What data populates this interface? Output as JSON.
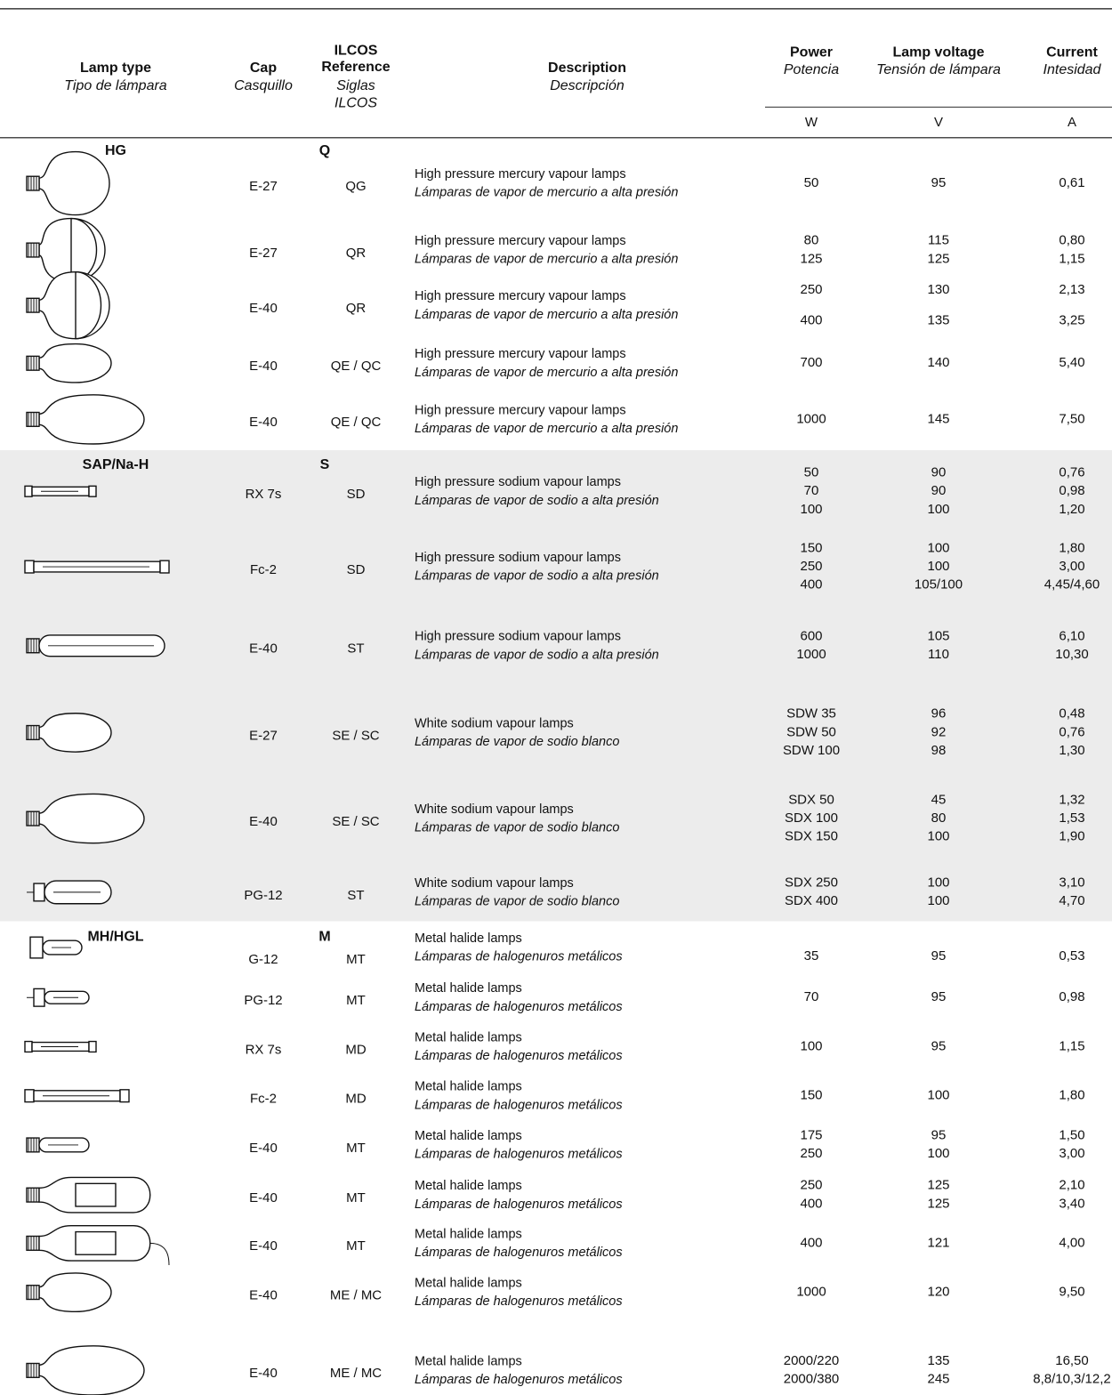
{
  "header": {
    "lamp_type": {
      "en": "Lamp type",
      "es": "Tipo de lámpara"
    },
    "cap": {
      "en": "Cap",
      "es": "Casquillo"
    },
    "ilcos": {
      "en": [
        "ILCOS",
        "Reference"
      ],
      "es": [
        "Siglas",
        "ILCOS"
      ]
    },
    "description": {
      "en": "Description",
      "es": "Descripción"
    },
    "power": {
      "en": "Power",
      "es": "Potencia",
      "unit": "W"
    },
    "voltage": {
      "en": "Lamp voltage",
      "es": "Tensión de lámpara",
      "unit": "V"
    },
    "current": {
      "en": "Current",
      "es": "Intesidad",
      "unit": "A"
    }
  },
  "groups": [
    {
      "label": "HG",
      "code": "Q",
      "rows": [
        {
          "cap": "E-27",
          "ilcos": "QG",
          "desc_en": "High pressure mercury vapour lamps",
          "desc_es": "Lámparas de vapor de mercurio a alta presión",
          "power": [
            "50"
          ],
          "voltage": [
            "95"
          ],
          "current": [
            "0,61"
          ]
        },
        {
          "cap": "E-27",
          "ilcos": "QR",
          "desc_en": "High pressure mercury vapour lamps",
          "desc_es": "Lámparas de vapor de mercurio a alta presión",
          "power": [
            "80",
            "125"
          ],
          "voltage": [
            "115",
            "125"
          ],
          "current": [
            "0,80",
            "1,15"
          ]
        },
        {
          "cap": "E-40",
          "ilcos": "QR",
          "desc_en": "High pressure mercury vapour lamps",
          "desc_es": "Lámparas de vapor de mercurio a alta presión",
          "power": [
            "250",
            "400"
          ],
          "voltage": [
            "130",
            "135"
          ],
          "current": [
            "2,13",
            "3,25"
          ]
        },
        {
          "cap": "E-40",
          "ilcos": "QE / QC",
          "desc_en": "High pressure mercury vapour lamps",
          "desc_es": "Lámparas de vapor de mercurio a alta presión",
          "power": [
            "700"
          ],
          "voltage": [
            "140"
          ],
          "current": [
            "5,40"
          ]
        },
        {
          "cap": "E-40",
          "ilcos": "QE / QC",
          "desc_en": "High pressure mercury vapour lamps",
          "desc_es": "Lámparas de vapor de mercurio a alta presión",
          "power": [
            "1000"
          ],
          "voltage": [
            "145"
          ],
          "current": [
            "7,50"
          ]
        }
      ]
    },
    {
      "label": "SAP/Na-H",
      "code": "S",
      "rows": [
        {
          "cap": "RX 7s",
          "ilcos": "SD",
          "desc_en": "High pressure sodium vapour lamps",
          "desc_es": "Lámparas de vapor de sodio a alta presión",
          "power": [
            "50",
            "70",
            "100"
          ],
          "voltage": [
            "90",
            "90",
            "100"
          ],
          "current": [
            "0,76",
            "0,98",
            "1,20"
          ]
        },
        {
          "cap": "Fc-2",
          "ilcos": "SD",
          "desc_en": "High pressure sodium vapour lamps",
          "desc_es": "Lámparas de vapor de sodio a alta presión",
          "power": [
            "150",
            "250",
            "400"
          ],
          "voltage": [
            "100",
            "100",
            "105/100"
          ],
          "current": [
            "1,80",
            "3,00",
            "4,45/4,60"
          ]
        },
        {
          "cap": "E-40",
          "ilcos": "ST",
          "desc_en": "High pressure sodium vapour lamps",
          "desc_es": "Lámparas de vapor de sodio a alta presión",
          "power": [
            "600",
            "1000"
          ],
          "voltage": [
            "105",
            "110"
          ],
          "current": [
            "6,10",
            "10,30"
          ]
        },
        {
          "cap": "E-27",
          "ilcos": "SE / SC",
          "desc_en": "White sodium vapour lamps",
          "desc_es": "Lámparas de vapor de sodio blanco",
          "power": [
            "SDW 35",
            "SDW 50",
            "SDW 100"
          ],
          "voltage": [
            "96",
            "92",
            "98"
          ],
          "current": [
            "0,48",
            "0,76",
            "1,30"
          ]
        },
        {
          "cap": "E-40",
          "ilcos": "SE / SC",
          "desc_en": "White sodium vapour lamps",
          "desc_es": "Lámparas de vapor de sodio blanco",
          "power": [
            "SDX 50",
            "SDX 100",
            "SDX 150"
          ],
          "voltage": [
            "45",
            "80",
            "100"
          ],
          "current": [
            "1,32",
            "1,53",
            "1,90"
          ]
        },
        {
          "cap": "PG-12",
          "ilcos": "ST",
          "desc_en": "White sodium vapour lamps",
          "desc_es": "Lámparas de vapor de sodio blanco",
          "power": [
            "SDX 250",
            "SDX 400"
          ],
          "voltage": [
            "100",
            "100"
          ],
          "current": [
            "3,10",
            "4,70"
          ]
        }
      ]
    },
    {
      "label": "MH/HGL",
      "code": "M",
      "rows": [
        {
          "cap": "G-12",
          "ilcos": "MT",
          "desc_en": "Metal halide lamps",
          "desc_es": "Lámparas de halogenuros metálicos",
          "power": [
            "35"
          ],
          "voltage": [
            "95"
          ],
          "current": [
            "0,53"
          ]
        },
        {
          "cap": "PG-12",
          "ilcos": "MT",
          "desc_en": "Metal halide lamps",
          "desc_es": "Lámparas de halogenuros metálicos",
          "power": [
            "70"
          ],
          "voltage": [
            "95"
          ],
          "current": [
            "0,98"
          ]
        },
        {
          "cap": "RX 7s",
          "ilcos": "MD",
          "desc_en": "Metal halide lamps",
          "desc_es": "Lámparas de halogenuros metálicos",
          "power": [
            "100"
          ],
          "voltage": [
            "95"
          ],
          "current": [
            "1,15"
          ]
        },
        {
          "cap": "Fc-2",
          "ilcos": "MD",
          "desc_en": "Metal halide lamps",
          "desc_es": "Lámparas de halogenuros metálicos",
          "power": [
            "150"
          ],
          "voltage": [
            "100"
          ],
          "current": [
            "1,80"
          ]
        },
        {
          "cap": "E-40",
          "ilcos": "MT",
          "desc_en": "Metal halide lamps",
          "desc_es": "Lámparas de halogenuros metálicos",
          "power": [
            "175",
            "250"
          ],
          "voltage": [
            "95",
            "100"
          ],
          "current": [
            "1,50",
            "3,00"
          ]
        },
        {
          "cap": "E-40",
          "ilcos": "MT",
          "desc_en": "Metal halide lamps",
          "desc_es": "Lámparas de halogenuros metálicos",
          "power": [
            "250",
            "400"
          ],
          "voltage": [
            "125",
            "125"
          ],
          "current": [
            "2,10",
            "3,40"
          ]
        },
        {
          "cap": "E-40",
          "ilcos": "MT",
          "desc_en": "Metal halide lamps",
          "desc_es": "Lámparas de halogenuros metálicos",
          "power": [
            "400"
          ],
          "voltage": [
            "121"
          ],
          "current": [
            "4,00"
          ]
        },
        {
          "cap": "E-40",
          "ilcos": "ME / MC",
          "desc_en": "Metal halide lamps",
          "desc_es": "Lámparas de halogenuros metálicos",
          "power": [
            "1000"
          ],
          "voltage": [
            "120"
          ],
          "current": [
            "9,50"
          ]
        },
        {
          "cap": "E-40",
          "ilcos": "ME / MC",
          "desc_en": "Metal halide lamps",
          "desc_es": "Lámparas de halogenuros metálicos",
          "power": [
            "2000/220",
            "2000/380"
          ],
          "voltage": [
            "135",
            "245"
          ],
          "current": [
            "16,50",
            "8,8/10,3/12,2"
          ]
        }
      ]
    }
  ]
}
